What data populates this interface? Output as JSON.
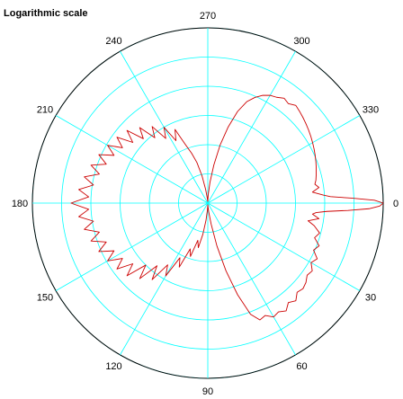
{
  "chart_data": {
    "type": "polar-line",
    "title": "Logarithmic scale",
    "radial_scale": "log",
    "radial_rings": 6,
    "theta_direction": "clockwise",
    "theta_zero_location": "right",
    "theta_tick_labels": [
      "0",
      "30",
      "60",
      "90",
      "120",
      "150",
      "180",
      "210",
      "240",
      "270",
      "300",
      "330"
    ],
    "grid": true,
    "grid_color": "#00ffff",
    "line_color": "#cc0000",
    "series": [
      {
        "theta_deg": [
          0,
          1,
          2,
          3,
          4,
          5,
          6,
          8,
          10,
          12,
          15,
          18,
          21,
          24,
          27,
          30,
          33,
          36,
          39,
          42,
          45,
          48,
          51,
          54,
          57,
          60,
          63,
          66,
          69,
          72,
          75,
          78,
          81,
          84,
          87,
          90,
          93,
          96,
          99,
          102,
          105,
          108,
          111,
          114,
          117,
          120,
          123,
          126,
          129,
          132,
          135,
          138,
          141,
          144,
          147,
          150,
          153,
          156,
          159,
          162,
          165,
          168,
          171,
          174,
          177,
          180,
          183,
          186,
          189,
          192,
          195,
          198,
          201,
          204,
          207,
          210,
          213,
          216,
          219,
          222,
          225,
          228,
          231,
          234,
          237,
          240,
          243,
          246,
          249,
          252,
          255,
          258,
          261,
          264,
          267,
          270,
          273,
          276,
          279,
          282,
          285,
          288,
          291,
          294,
          297,
          300,
          303,
          306,
          309,
          312,
          315,
          318,
          321,
          324,
          327,
          330,
          333,
          336,
          339,
          342,
          345,
          348,
          350,
          352,
          354,
          356,
          357,
          358,
          359,
          360
        ],
        "r_norm": [
          1.0,
          0.98,
          0.92,
          0.8,
          0.68,
          0.62,
          0.6,
          0.64,
          0.58,
          0.62,
          0.66,
          0.64,
          0.68,
          0.66,
          0.7,
          0.68,
          0.71,
          0.7,
          0.72,
          0.73,
          0.72,
          0.75,
          0.73,
          0.76,
          0.74,
          0.75,
          0.72,
          0.73,
          0.68,
          0.55,
          0.4,
          0.25,
          0.12,
          0.05,
          0.02,
          0.01,
          0.04,
          0.1,
          0.18,
          0.26,
          0.22,
          0.32,
          0.28,
          0.4,
          0.35,
          0.48,
          0.42,
          0.54,
          0.46,
          0.58,
          0.5,
          0.62,
          0.55,
          0.64,
          0.58,
          0.66,
          0.6,
          0.68,
          0.62,
          0.7,
          0.64,
          0.72,
          0.66,
          0.74,
          0.68,
          0.78,
          0.68,
          0.74,
          0.66,
          0.72,
          0.64,
          0.7,
          0.62,
          0.68,
          0.6,
          0.66,
          0.58,
          0.64,
          0.55,
          0.62,
          0.52,
          0.58,
          0.48,
          0.54,
          0.44,
          0.5,
          0.4,
          0.46,
          0.36,
          0.3,
          0.24,
          0.16,
          0.08,
          0.03,
          0.01,
          0.01,
          0.05,
          0.12,
          0.22,
          0.34,
          0.45,
          0.55,
          0.62,
          0.66,
          0.69,
          0.71,
          0.72,
          0.74,
          0.73,
          0.75,
          0.74,
          0.73,
          0.72,
          0.71,
          0.7,
          0.69,
          0.68,
          0.67,
          0.66,
          0.65,
          0.64,
          0.63,
          0.62,
          0.64,
          0.6,
          0.66,
          0.7,
          0.82,
          0.95,
          1.0
        ]
      }
    ]
  }
}
